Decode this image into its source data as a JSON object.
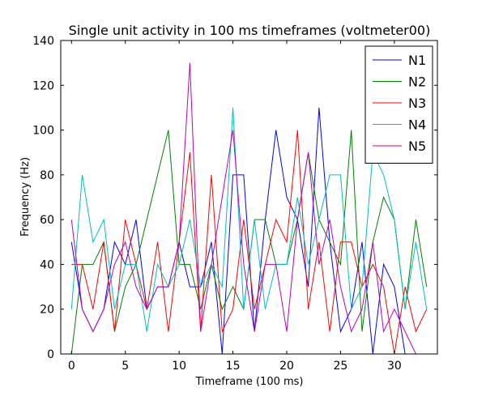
{
  "chart_data": {
    "type": "line",
    "title": "Single unit activity in 100 ms timeframes (voltmeter00)",
    "xlabel": "Timeframe (100 ms)",
    "ylabel": "Frequency (Hz)",
    "xlim": [
      -1,
      34
    ],
    "ylim": [
      0,
      140
    ],
    "xticks": [
      0,
      5,
      10,
      15,
      20,
      25,
      30
    ],
    "yticks": [
      0,
      20,
      40,
      60,
      80,
      100,
      120,
      140
    ],
    "grid": false,
    "legend_position": "top-right",
    "x": [
      0,
      1,
      2,
      3,
      4,
      5,
      6,
      7,
      8,
      9,
      10,
      11,
      12,
      13,
      14,
      15,
      16,
      17,
      18,
      19,
      20,
      21,
      22,
      23,
      24,
      25,
      26,
      27,
      28,
      29,
      30,
      31,
      32,
      33
    ],
    "series": [
      {
        "name": "N1",
        "color": "#0000ff",
        "values": [
          50,
          20,
          10,
          20,
          50,
          40,
          60,
          20,
          30,
          30,
          50,
          30,
          30,
          50,
          0,
          80,
          80,
          10,
          60,
          100,
          70,
          60,
          30,
          110,
          50,
          10,
          20,
          50,
          0,
          40,
          30,
          0,
          0,
          0
        ]
      },
      {
        "name": "N2",
        "color": "#008000",
        "values": [
          0,
          40,
          40,
          50,
          10,
          30,
          40,
          60,
          80,
          100,
          40,
          40,
          20,
          40,
          20,
          30,
          20,
          60,
          60,
          40,
          40,
          60,
          90,
          60,
          50,
          40,
          100,
          10,
          50,
          70,
          60,
          20,
          60,
          30
        ]
      },
      {
        "name": "N3",
        "color": "#ff0000",
        "values": [
          40,
          40,
          20,
          50,
          10,
          60,
          40,
          20,
          50,
          10,
          50,
          90,
          10,
          80,
          10,
          20,
          60,
          20,
          40,
          60,
          50,
          100,
          20,
          50,
          10,
          50,
          50,
          30,
          40,
          30,
          0,
          30,
          10,
          20
        ]
      },
      {
        "name": "N4",
        "color": "#00bfbf",
        "values": [
          20,
          80,
          50,
          60,
          20,
          40,
          40,
          10,
          40,
          30,
          40,
          60,
          30,
          40,
          30,
          110,
          20,
          60,
          20,
          40,
          40,
          70,
          40,
          60,
          80,
          80,
          20,
          30,
          90,
          80,
          60,
          20,
          50,
          20
        ]
      },
      {
        "name": "N5",
        "color": "#bf00bf",
        "values": [
          60,
          20,
          10,
          20,
          40,
          50,
          30,
          20,
          30,
          30,
          50,
          130,
          10,
          40,
          70,
          100,
          40,
          10,
          40,
          40,
          10,
          60,
          90,
          40,
          60,
          30,
          10,
          20,
          50,
          10,
          20,
          10,
          0,
          0
        ]
      }
    ]
  }
}
